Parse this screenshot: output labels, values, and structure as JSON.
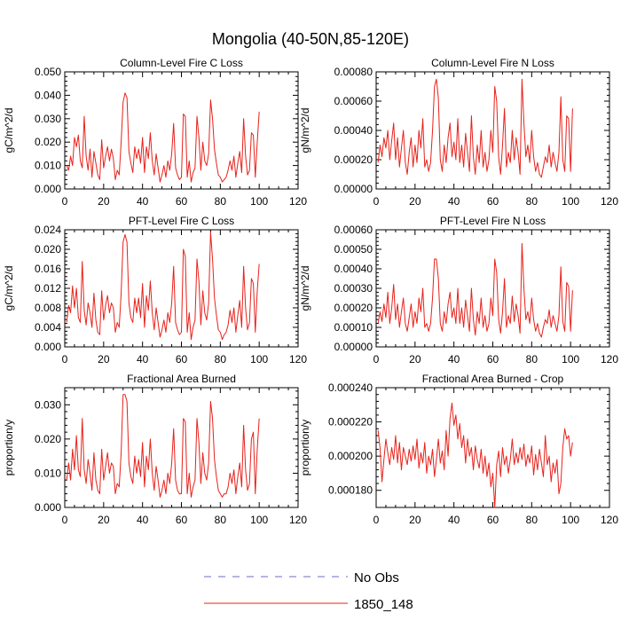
{
  "figure": {
    "title": "Mongolia (40-50N,85-120E)",
    "legend": [
      {
        "label": "No Obs",
        "color": "#6b6bc8",
        "dash": "dashed"
      },
      {
        "label": "1850_148",
        "color": "#e8211a",
        "dash": "solid"
      }
    ]
  },
  "chart_data": [
    {
      "type": "line",
      "title": "Column-Level Fire C Loss",
      "ylabel": "gC/m^2/d",
      "xlim": [
        0,
        120
      ],
      "ylim": [
        0,
        0.05
      ],
      "xticks": [
        0,
        20,
        40,
        60,
        80,
        100,
        120
      ],
      "yticks": [
        "0.000",
        "0.010",
        "0.020",
        "0.030",
        "0.040",
        "0.050"
      ],
      "series": [
        {
          "name": "1850_148",
          "color": "#e8211a",
          "values": [
            0.01,
            0.008,
            0.014,
            0.01,
            0.022,
            0.018,
            0.023,
            0.012,
            0.009,
            0.031,
            0.014,
            0.008,
            0.017,
            0.005,
            0.016,
            0.011,
            0.006,
            0.004,
            0.021,
            0.009,
            0.014,
            0.018,
            0.012,
            0.017,
            0.013,
            0.004,
            0.008,
            0.006,
            0.02,
            0.037,
            0.041,
            0.039,
            0.016,
            0.011,
            0.007,
            0.018,
            0.013,
            0.017,
            0.011,
            0.022,
            0.007,
            0.018,
            0.013,
            0.024,
            0.012,
            0.006,
            0.015,
            0.009,
            0.003,
            0.006,
            0.01,
            0.005,
            0.012,
            0.008,
            0.015,
            0.028,
            0.009,
            0.006,
            0.004,
            0.005,
            0.032,
            0.031,
            0.005,
            0.012,
            0.003,
            0.007,
            0.009,
            0.031,
            0.022,
            0.008,
            0.02,
            0.012,
            0.01,
            0.015,
            0.038,
            0.03,
            0.017,
            0.011,
            0.006,
            0.005,
            0.003,
            0.004,
            0.005,
            0.008,
            0.012,
            0.008,
            0.014,
            0.005,
            0.011,
            0.016,
            0.007,
            0.03,
            0.014,
            0.006,
            0.008,
            0.024,
            0.023,
            0.005,
            0.02,
            0.033
          ]
        }
      ]
    },
    {
      "type": "line",
      "title": "Column-Level Fire N Loss",
      "ylabel": "gN/m^2/d",
      "xlim": [
        0,
        120
      ],
      "ylim": [
        0,
        0.0008
      ],
      "xticks": [
        0,
        20,
        40,
        60,
        80,
        100,
        120
      ],
      "yticks": [
        "0.00000",
        "0.00020",
        "0.00040",
        "0.00060",
        "0.00080"
      ],
      "series": [
        {
          "name": "1850_148",
          "color": "#e8211a",
          "values": [
            0.00018,
            0.0003,
            0.00022,
            0.00035,
            0.00028,
            0.0004,
            0.0002,
            0.00033,
            0.00045,
            0.0002,
            0.00035,
            0.00015,
            0.00028,
            0.0004,
            0.00018,
            0.0001,
            0.00025,
            0.00035,
            0.00015,
            0.0003,
            0.00018,
            0.0004,
            0.00028,
            0.00048,
            0.00015,
            0.0002,
            0.00012,
            0.00018,
            0.0004,
            0.0007,
            0.00075,
            0.00062,
            0.0002,
            0.00012,
            0.0003,
            0.00018,
            0.00035,
            0.00045,
            0.00022,
            0.00032,
            0.0002,
            0.00048,
            0.00018,
            0.0003,
            0.00015,
            0.00038,
            0.00025,
            0.00012,
            0.0005,
            0.00022,
            0.0001,
            0.0003,
            0.00018,
            0.0004,
            0.00015,
            0.00025,
            0.00012,
            0.0002,
            0.0004,
            0.00025,
            0.0007,
            0.0006,
            0.00022,
            0.0001,
            0.0003,
            0.00055,
            0.00015,
            0.00025,
            0.00018,
            0.0004,
            0.0002,
            0.00035,
            0.00025,
            0.0001,
            0.00075,
            0.00045,
            0.00022,
            0.0003,
            0.00018,
            0.0004,
            0.00022,
            0.00012,
            0.00018,
            0.0001,
            8e-05,
            0.00015,
            0.00022,
            0.00018,
            0.0003,
            0.00015,
            0.00025,
            0.00018,
            0.00012,
            0.00025,
            0.00063,
            0.0002,
            0.00012,
            0.0005,
            0.00048,
            0.00012,
            0.00055
          ]
        }
      ]
    },
    {
      "type": "line",
      "title": "PFT-Level Fire C Loss",
      "ylabel": "gC/m^2/d",
      "xlim": [
        0,
        120
      ],
      "ylim": [
        0,
        0.024
      ],
      "xticks": [
        0,
        20,
        40,
        60,
        80,
        100,
        120
      ],
      "yticks": [
        "0.000",
        "0.004",
        "0.008",
        "0.012",
        "0.016",
        "0.020",
        "0.024"
      ],
      "series": [
        {
          "name": "1850_148",
          "color": "#e8211a",
          "values": [
            0.005,
            0.0085,
            0.007,
            0.0125,
            0.008,
            0.012,
            0.006,
            0.005,
            0.0175,
            0.0075,
            0.0045,
            0.009,
            0.007,
            0.004,
            0.011,
            0.0055,
            0.003,
            0.0025,
            0.0115,
            0.0055,
            0.0085,
            0.0105,
            0.007,
            0.009,
            0.008,
            0.003,
            0.005,
            0.004,
            0.011,
            0.0215,
            0.023,
            0.0215,
            0.009,
            0.006,
            0.005,
            0.01,
            0.007,
            0.01,
            0.006,
            0.013,
            0.004,
            0.0105,
            0.0075,
            0.0135,
            0.007,
            0.0035,
            0.008,
            0.005,
            0.002,
            0.0035,
            0.0055,
            0.003,
            0.007,
            0.005,
            0.009,
            0.0165,
            0.005,
            0.0035,
            0.0025,
            0.003,
            0.02,
            0.0185,
            0.003,
            0.007,
            0.0015,
            0.004,
            0.0055,
            0.018,
            0.0135,
            0.0045,
            0.0115,
            0.007,
            0.0055,
            0.009,
            0.0235,
            0.018,
            0.01,
            0.0065,
            0.0035,
            0.003,
            0.0015,
            0.0025,
            0.003,
            0.0045,
            0.0075,
            0.005,
            0.008,
            0.003,
            0.0065,
            0.0095,
            0.004,
            0.0165,
            0.008,
            0.0035,
            0.005,
            0.014,
            0.013,
            0.003,
            0.0115,
            0.017
          ]
        }
      ]
    },
    {
      "type": "line",
      "title": "PFT-Level Fire N Loss",
      "ylabel": "gN/m^2/d",
      "xlim": [
        0,
        120
      ],
      "ylim": [
        0,
        0.0006
      ],
      "xticks": [
        0,
        20,
        40,
        60,
        80,
        100,
        120
      ],
      "yticks": [
        "0.00000",
        "0.00010",
        "0.00020",
        "0.00030",
        "0.00040",
        "0.00050",
        "0.00060"
      ],
      "series": [
        {
          "name": "1850_148",
          "color": "#e8211a",
          "values": [
            0.00012,
            0.00018,
            0.00013,
            0.00022,
            0.00015,
            0.00028,
            0.00012,
            0.0002,
            0.00032,
            0.00014,
            0.00022,
            0.0001,
            0.00018,
            0.00025,
            0.00012,
            8e-05,
            0.00015,
            0.00022,
            0.0001,
            0.00018,
            0.00012,
            0.00025,
            0.00018,
            0.0003,
            0.0001,
            0.00012,
            8e-05,
            0.00012,
            0.00025,
            0.00045,
            0.00045,
            0.00035,
            0.00012,
            8e-05,
            0.00018,
            0.00012,
            0.00022,
            0.00028,
            0.00015,
            0.0002,
            0.00012,
            0.0003,
            0.00012,
            0.0002,
            0.0001,
            0.00024,
            0.00016,
            8e-05,
            0.0003,
            0.00014,
            6e-05,
            0.00018,
            0.00012,
            0.00025,
            0.0001,
            0.00016,
            8e-05,
            0.00012,
            0.00025,
            0.00016,
            0.00045,
            0.00038,
            0.00014,
            7e-05,
            0.00018,
            0.00035,
            0.0001,
            0.00016,
            0.00012,
            0.00026,
            0.00013,
            0.00022,
            0.00016,
            7e-05,
            0.00053,
            0.0003,
            0.00014,
            0.00018,
            0.00012,
            0.00025,
            0.00014,
            8e-05,
            0.00012,
            7e-05,
            5e-05,
            0.0001,
            0.00014,
            0.00012,
            0.00019,
            0.0001,
            0.00016,
            0.00012,
            8e-05,
            0.00016,
            0.00041,
            0.00013,
            8e-05,
            0.00033,
            0.00031,
            8e-05,
            0.00029
          ]
        }
      ]
    },
    {
      "type": "line",
      "title": "Fractional Area Burned",
      "ylabel": "proportion/y",
      "xlim": [
        0,
        120
      ],
      "ylim": [
        0,
        0.035
      ],
      "xticks": [
        0,
        20,
        40,
        60,
        80,
        100,
        120
      ],
      "yticks": [
        "0.000",
        "0.010",
        "0.020",
        "0.030"
      ],
      "series": [
        {
          "name": "1850_148",
          "color": "#e8211a",
          "values": [
            0.008,
            0.013,
            0.008,
            0.017,
            0.011,
            0.021,
            0.011,
            0.009,
            0.026,
            0.011,
            0.007,
            0.014,
            0.01,
            0.005,
            0.016,
            0.008,
            0.005,
            0.004,
            0.017,
            0.008,
            0.012,
            0.016,
            0.01,
            0.013,
            0.012,
            0.004,
            0.007,
            0.006,
            0.016,
            0.033,
            0.033,
            0.031,
            0.013,
            0.009,
            0.007,
            0.015,
            0.01,
            0.014,
            0.009,
            0.019,
            0.006,
            0.015,
            0.011,
            0.02,
            0.01,
            0.005,
            0.012,
            0.008,
            0.003,
            0.005,
            0.008,
            0.004,
            0.01,
            0.007,
            0.013,
            0.023,
            0.008,
            0.005,
            0.004,
            0.004,
            0.026,
            0.025,
            0.004,
            0.01,
            0.003,
            0.006,
            0.008,
            0.026,
            0.019,
            0.007,
            0.016,
            0.01,
            0.008,
            0.013,
            0.031,
            0.026,
            0.014,
            0.009,
            0.005,
            0.004,
            0.003,
            0.004,
            0.004,
            0.006,
            0.01,
            0.007,
            0.011,
            0.004,
            0.009,
            0.013,
            0.006,
            0.024,
            0.011,
            0.005,
            0.007,
            0.02,
            0.022,
            0.004,
            0.017,
            0.026
          ]
        }
      ]
    },
    {
      "type": "line",
      "title": "Fractional Area Burned - Crop",
      "ylabel": "proportion/y",
      "xlim": [
        0,
        120
      ],
      "ylim": [
        0.00017,
        0.00024
      ],
      "xticks": [
        0,
        20,
        40,
        60,
        80,
        100,
        120
      ],
      "yticks": [
        "0.000180",
        "0.000200",
        "0.000220",
        "0.000240"
      ],
      "series": [
        {
          "name": "1850_148",
          "color": "#e8211a",
          "values": [
            0.000215,
            0.000205,
            0.000185,
            0.000198,
            0.00021,
            0.000202,
            0.000195,
            0.000205,
            0.000198,
            0.000212,
            0.000196,
            0.000208,
            0.000192,
            0.000205,
            0.0002,
            0.000195,
            0.000204,
            0.000197,
            0.000206,
            0.000198,
            0.00021,
            0.000193,
            0.000202,
            0.000196,
            0.000208,
            0.00019,
            0.0002,
            0.000195,
            0.000204,
            0.000188,
            0.000198,
            0.00021,
            0.000196,
            0.000203,
            0.000192,
            0.000215,
            0.0002,
            0.000222,
            0.000231,
            0.000218,
            0.000224,
            0.00021,
            0.000219,
            0.000205,
            0.000212,
            0.000196,
            0.00021,
            0.0002,
            0.000205,
            0.000192,
            0.000206,
            0.000198,
            0.000193,
            0.000204,
            0.00019,
            0.0002,
            0.000188,
            0.000196,
            0.000182,
            0.00019,
            0.00017,
            0.000195,
            0.000203,
            0.000188,
            0.000205,
            0.000195,
            0.0002,
            0.00019,
            0.000198,
            0.00021,
            0.000195,
            0.000202,
            0.000196,
            0.000205,
            0.000198,
            0.000207,
            0.000194,
            0.000201,
            0.000196,
            0.000206,
            0.000189,
            0.000201,
            0.000192,
            0.000204,
            0.000196,
            0.000188,
            0.000212,
            0.000195,
            0.0002,
            0.000185,
            0.000196,
            0.00019,
            0.000198,
            0.000178,
            0.000184,
            0.000205,
            0.000216,
            0.00021,
            0.000212,
            0.0002,
            0.000208
          ]
        }
      ]
    }
  ]
}
